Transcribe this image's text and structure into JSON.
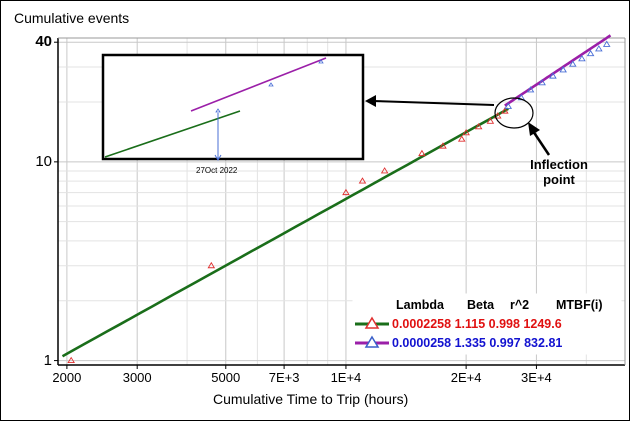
{
  "chart_data": {
    "type": "scatter",
    "scale": "log-log",
    "ylabel": "Cumulative events",
    "xlabel": "Cumulative Time to Trip (hours)",
    "x_ticks": [
      2000,
      3000,
      5000,
      7000,
      10000,
      20000,
      30000
    ],
    "x_tick_labels": [
      "2000",
      "3000",
      "5000",
      "7E+3",
      "1E+4",
      "2E+4",
      "3E+4"
    ],
    "y_ticks": [
      1,
      10,
      40
    ],
    "y_tick_labels": [
      "1",
      "10",
      "40"
    ],
    "xlim": [
      1900,
      50000
    ],
    "ylim": [
      0.95,
      42
    ],
    "grid": true,
    "legend_header": {
      "lambda": "Lambda",
      "beta": "Beta",
      "r2": "r^2",
      "mtbf": "MTBF(i)"
    },
    "series": [
      {
        "lambda": "0.0002258",
        "beta": "1.115",
        "r2": "0.998",
        "mtbf": "1249.6",
        "color": "#1a6e1a",
        "marker_color": "#e03030",
        "text_color": "#e01010",
        "fit_range": [
          1950,
          25500
        ],
        "points": [
          [
            2050,
            1
          ],
          [
            4600,
            3
          ],
          [
            10000,
            7
          ],
          [
            11000,
            8
          ],
          [
            12500,
            9
          ],
          [
            15500,
            11
          ],
          [
            17500,
            12
          ],
          [
            19500,
            13
          ],
          [
            20000,
            14
          ],
          [
            21500,
            15
          ],
          [
            23000,
            16
          ],
          [
            24000,
            17
          ],
          [
            25000,
            18
          ]
        ]
      },
      {
        "lambda": "0.0000258",
        "beta": "1.335",
        "r2": "0.997",
        "mtbf": "832.81",
        "color": "#9b1fa8",
        "marker_color": "#4a6fd6",
        "text_color": "#1212d0",
        "fit_range": [
          25000,
          46000
        ],
        "points": [
          [
            25500,
            19
          ],
          [
            27500,
            21
          ],
          [
            29000,
            23
          ],
          [
            31000,
            25
          ],
          [
            33000,
            27
          ],
          [
            35000,
            29
          ],
          [
            37000,
            31
          ],
          [
            39000,
            33
          ],
          [
            41000,
            35
          ],
          [
            43000,
            37
          ],
          [
            45000,
            39
          ]
        ]
      }
    ],
    "annotations": {
      "inset_date": "27Oct 2022",
      "callout": "Inflection\npoint"
    }
  }
}
